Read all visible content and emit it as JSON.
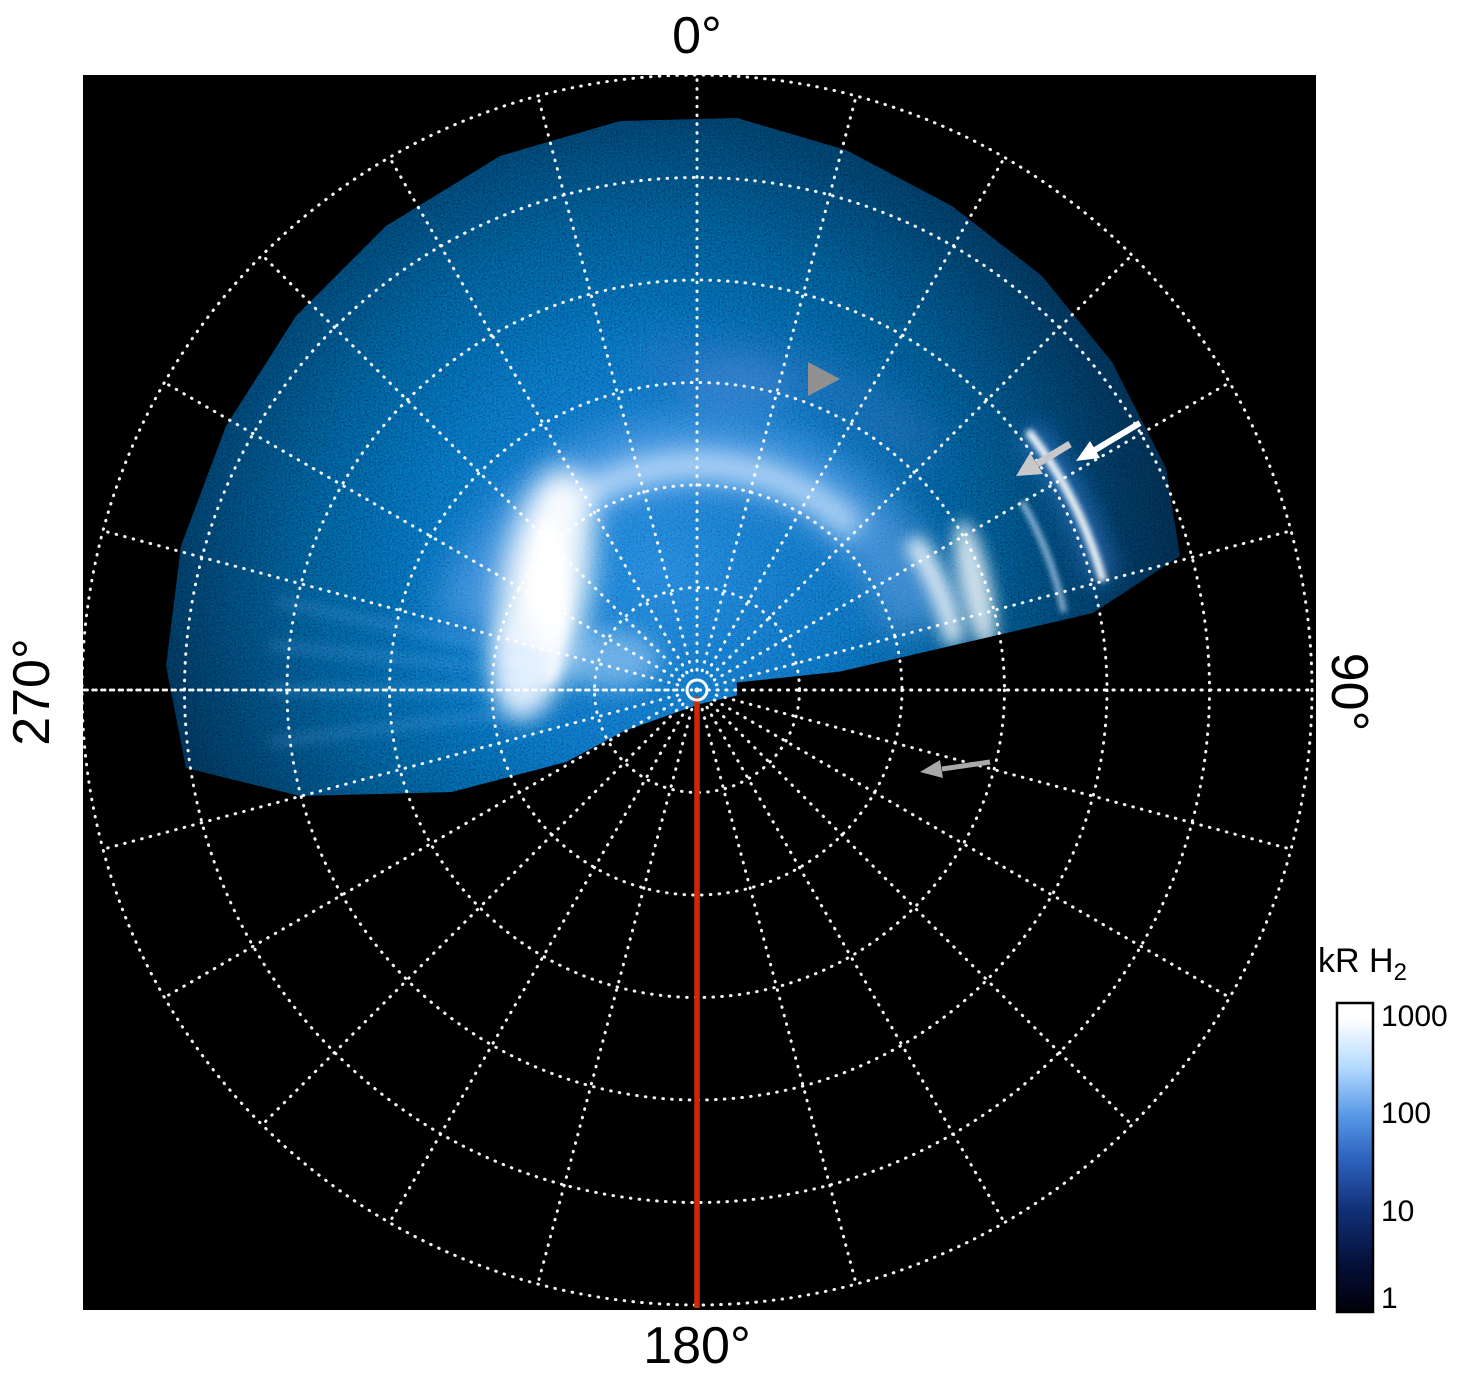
{
  "figure": {
    "angle_labels": {
      "top": "0°",
      "right": "90°",
      "bottom": "180°",
      "left": "270°"
    },
    "colorbar": {
      "title_main": "kR H",
      "title_sub": "2",
      "ticks": [
        "1000",
        "100",
        "10",
        "1"
      ]
    },
    "colors": {
      "plot_background": "#000000",
      "page_background": "#ffffff",
      "grid": "#ffffff",
      "meridian_line": "#cc2a02",
      "aurora_bright": "#ffffff",
      "aurora_mid": "#3f7fd9",
      "aurora_dark": "#061a45"
    }
  },
  "chart_data": {
    "type": "heatmap",
    "projection": "polar",
    "quantity": "auroral H2 emission brightness",
    "units": "kR H2",
    "color_scale": "logarithmic",
    "color_range_kR": [
      1,
      1000
    ],
    "colorbar_tick_values": [
      1000,
      100,
      10,
      1
    ],
    "azimuth_tick_labels_deg": [
      0,
      90,
      180,
      270
    ],
    "grid": {
      "rings": 6,
      "spoke_step_deg": 15,
      "style": "white dotted polar graticule"
    },
    "colormap": [
      "#000000",
      "#0a1c50",
      "#1e55b0",
      "#5a9ae6",
      "#b8dcff",
      "#ffffff"
    ],
    "observed_sector_deg": [
      -100,
      100
    ],
    "no_data_region": "lower half of polar map (azimuths ~100 to ~260 deg) is black / unobserved",
    "features": [
      {
        "name": "main bright auroral patch",
        "azimuth_deg": 285,
        "radius_fraction": 0.33,
        "peak_brightness_kR": 1000
      },
      {
        "name": "main oval arc around pole",
        "azimuth_span_deg": [
          -75,
          80
        ],
        "radius_fraction": 0.37,
        "brightness_kR": 300
      },
      {
        "name": "narrow outer arc (arrowed)",
        "azimuth_span_deg": [
          50,
          75
        ],
        "radius_fraction": 0.68,
        "brightness_kR": 800
      },
      {
        "name": "diffuse patchy arc",
        "azimuth_span_deg": [
          -20,
          45
        ],
        "radius_fraction": 0.54,
        "brightness_kR": 100
      },
      {
        "name": "speckled background emission",
        "azimuth_span_deg": [
          -100,
          80
        ],
        "radius_fraction_range": [
          0.05,
          0.95
        ],
        "brightness_kR": 10
      }
    ],
    "annotations": [
      {
        "type": "arrowhead",
        "color": "gray",
        "points_to": "diffuse patchy arc",
        "direction": "right"
      },
      {
        "type": "arrow",
        "color": "white",
        "points_to": "narrow outer arc",
        "direction": "down-left"
      },
      {
        "type": "arrow",
        "color": "light-gray",
        "points_to": "narrow outer arc",
        "direction": "down-left"
      },
      {
        "type": "arrow",
        "color": "gray",
        "points_to": "location in unobserved sector below dawn side",
        "direction": "left"
      },
      {
        "type": "line",
        "color": "#cc2a02",
        "azimuth_deg": 180,
        "description": "solid red-orange radial line from pole to 180 deg edge"
      },
      {
        "type": "circle-marker",
        "color": "white",
        "position": "pole (plot center)"
      }
    ]
  }
}
